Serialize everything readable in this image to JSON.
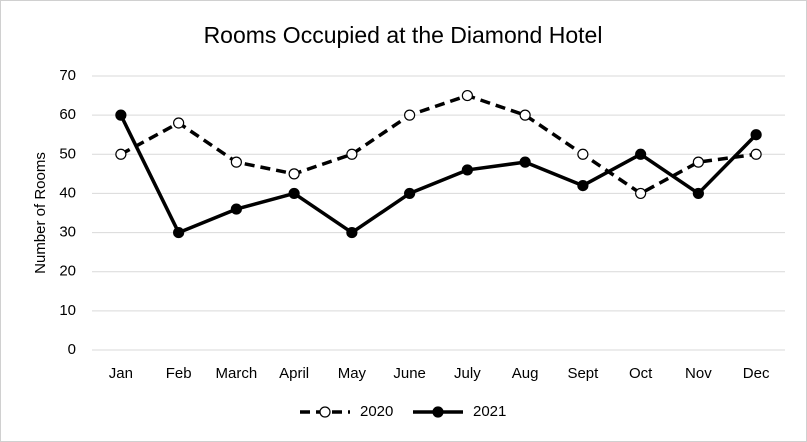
{
  "chart_data": {
    "type": "line",
    "title": "Rooms Occupied at the Diamond Hotel",
    "y_label": "Number of Rooms",
    "categories": [
      "Jan",
      "Feb",
      "March",
      "April",
      "May",
      "June",
      "July",
      "Aug",
      "Sept",
      "Oct",
      "Nov",
      "Dec"
    ],
    "series": [
      {
        "name": "2020",
        "color": "#000000",
        "dashed": true,
        "marker_fill": "#ffffff",
        "values": [
          50,
          58,
          48,
          45,
          50,
          60,
          65,
          60,
          50,
          40,
          48,
          50
        ]
      },
      {
        "name": "2021",
        "color": "#000000",
        "dashed": false,
        "marker_fill": "#000000",
        "values": [
          60,
          30,
          36,
          40,
          30,
          40,
          46,
          48,
          42,
          50,
          40,
          55
        ]
      }
    ],
    "ylim": [
      0,
      70
    ],
    "yticks": [
      0,
      10,
      20,
      30,
      40,
      50,
      60,
      70
    ],
    "grid": true,
    "legend": "bottom"
  }
}
